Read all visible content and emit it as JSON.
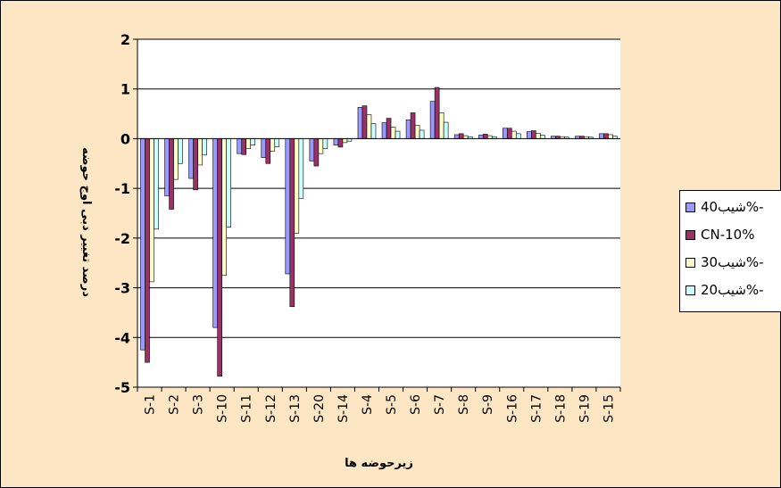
{
  "chart_data": {
    "type": "bar",
    "title": "",
    "ylabel": "درصد تغییر دبی اوج حوضه",
    "xlabel": "زیرحوضه ها",
    "ylim": [
      -5,
      2
    ],
    "yticks": [
      -5,
      -4,
      -3,
      -2,
      -1,
      0,
      1,
      2
    ],
    "ytick_labels": [
      "-5",
      "-4",
      "-3",
      "-2",
      "-1",
      "0",
      "1",
      "2"
    ],
    "grid": true,
    "legend_position": "right",
    "categories": [
      "S-1",
      "S-2",
      "S-3",
      "S-10",
      "S-11",
      "S-12",
      "S-13",
      "S-20",
      "S-14",
      "S-4",
      "S-5",
      "S-6",
      "S-7",
      "S-8",
      "S-9",
      "S-16",
      "S-17",
      "S-18",
      "S-19",
      "S-15"
    ],
    "series": [
      {
        "name": "شیب40%-",
        "color": "#9999ff",
        "values": [
          -4.25,
          -1.15,
          -0.8,
          -3.8,
          -0.3,
          -0.38,
          -2.72,
          -0.45,
          -0.13,
          0.63,
          0.32,
          0.38,
          0.75,
          0.08,
          0.07,
          0.21,
          0.14,
          0.05,
          0.05,
          0.1
        ]
      },
      {
        "name": "CN-10%",
        "color": "#993366",
        "values": [
          -4.5,
          -1.42,
          -1.03,
          -4.78,
          -0.32,
          -0.5,
          -3.38,
          -0.55,
          -0.17,
          0.66,
          0.41,
          0.52,
          1.03,
          0.1,
          0.09,
          0.21,
          0.16,
          0.05,
          0.05,
          0.1
        ]
      },
      {
        "name": "شیب30%-",
        "color": "#ffffcc",
        "values": [
          -2.88,
          -0.82,
          -0.53,
          -2.75,
          -0.2,
          -0.25,
          -1.9,
          -0.3,
          -0.08,
          0.48,
          0.23,
          0.27,
          0.52,
          0.06,
          0.06,
          0.15,
          0.11,
          0.04,
          0.04,
          0.08
        ]
      },
      {
        "name": "شیب20%-",
        "color": "#ccffff",
        "values": [
          -1.82,
          -0.5,
          -0.33,
          -1.78,
          -0.13,
          -0.16,
          -1.2,
          -0.2,
          -0.05,
          0.3,
          0.15,
          0.17,
          0.33,
          0.04,
          0.04,
          0.1,
          0.07,
          0.03,
          0.03,
          0.05
        ]
      }
    ]
  }
}
